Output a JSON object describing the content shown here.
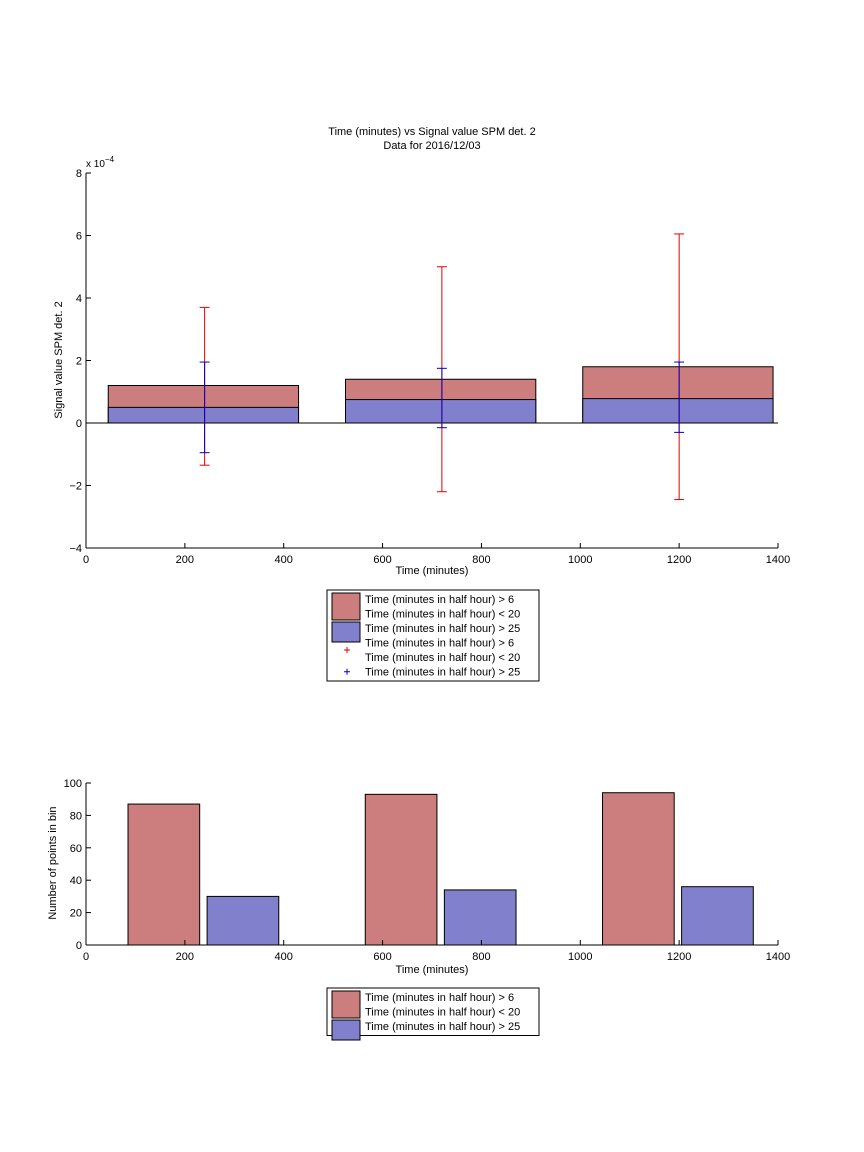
{
  "colors": {
    "red_fill": "#cc7e7e",
    "blue_fill": "#8080cc",
    "red_err": "#e00000",
    "blue_err": "#0000cc",
    "edge": "#000000"
  },
  "chart_data": [
    {
      "type": "bar",
      "title": "Time (minutes) vs Signal value SPM det. 2",
      "subtitle": "Data for 2016/12/03",
      "xlabel": "Time (minutes)",
      "ylabel": "Signal value SPM det. 2",
      "y_exponent_label": "x 10",
      "y_exponent_power": "−4",
      "xlim": [
        0,
        1400
      ],
      "ylim": [
        -4,
        8
      ],
      "x_ticks": [
        0,
        200,
        400,
        600,
        800,
        1000,
        1200,
        1400
      ],
      "y_ticks": [
        -4,
        -2,
        0,
        2,
        4,
        6,
        8
      ],
      "y_tick_labels": [
        "−4",
        "−2",
        "0",
        "2",
        "4",
        "6",
        "8"
      ],
      "bar_mode": "overlay",
      "bins": [
        {
          "x_start": 45,
          "x_end": 430,
          "center": 240
        },
        {
          "x_start": 525,
          "x_end": 910,
          "center": 720
        },
        {
          "x_start": 1005,
          "x_end": 1390,
          "center": 1200
        }
      ],
      "series": [
        {
          "name": "Time (minutes in half hour) > 6\nTime (minutes in half hour) < 20",
          "color": "red_fill",
          "values": [
            1.2,
            1.4,
            1.8
          ]
        },
        {
          "name": "Time (minutes in half hour) > 25",
          "color": "blue_fill",
          "values": [
            0.5,
            0.75,
            0.78
          ]
        }
      ],
      "error_bars": [
        {
          "name": "Time (minutes in half hour) > 6\nTime (minutes in half hour) < 20",
          "color": "red_err",
          "x": [
            240,
            720,
            1200
          ],
          "low": [
            -1.35,
            -2.2,
            -2.45
          ],
          "high": [
            3.7,
            5.0,
            6.05
          ]
        },
        {
          "name": "Time (minutes in half hour) > 25",
          "color": "blue_err",
          "x": [
            240,
            720,
            1200
          ],
          "low": [
            -0.95,
            -0.15,
            -0.3
          ],
          "high": [
            1.95,
            1.75,
            1.95
          ]
        }
      ],
      "legend": {
        "placement": "below",
        "entries": [
          {
            "kind": "patch",
            "color": "red_fill",
            "lines": [
              "Time (minutes in half hour) > 6",
              "Time (minutes in half hour) < 20"
            ]
          },
          {
            "kind": "patch",
            "color": "blue_fill",
            "lines": [
              "Time (minutes in half hour) > 25"
            ]
          },
          {
            "kind": "marker",
            "color": "red_err",
            "lines": [
              "Time (minutes in half hour) > 6",
              "Time (minutes in half hour) < 20"
            ]
          },
          {
            "kind": "marker",
            "color": "blue_err",
            "lines": [
              "Time (minutes in half hour) > 25"
            ]
          }
        ]
      },
      "grid": false
    },
    {
      "type": "bar",
      "title": "",
      "xlabel": "Time (minutes)",
      "ylabel": "Number of points in bin",
      "xlim": [
        0,
        1400
      ],
      "ylim": [
        0,
        100
      ],
      "x_ticks": [
        0,
        200,
        400,
        600,
        800,
        1000,
        1200,
        1400
      ],
      "y_ticks": [
        0,
        20,
        40,
        60,
        80,
        100
      ],
      "y_tick_labels": [
        "0",
        "20",
        "40",
        "60",
        "80",
        "100"
      ],
      "bar_mode": "grouped",
      "bars": [
        {
          "series": 0,
          "x_start": 85,
          "x_end": 230,
          "value": 87
        },
        {
          "series": 1,
          "x_start": 245,
          "x_end": 390,
          "value": 30
        },
        {
          "series": 0,
          "x_start": 565,
          "x_end": 710,
          "value": 93
        },
        {
          "series": 1,
          "x_start": 725,
          "x_end": 870,
          "value": 34
        },
        {
          "series": 0,
          "x_start": 1045,
          "x_end": 1190,
          "value": 94
        },
        {
          "series": 1,
          "x_start": 1205,
          "x_end": 1350,
          "value": 36
        }
      ],
      "series": [
        {
          "name": "Time (minutes in half hour) > 6\nTime (minutes in half hour) < 20",
          "color": "red_fill",
          "values": [
            87,
            93,
            94
          ]
        },
        {
          "name": "Time (minutes in half hour) > 25",
          "color": "blue_fill",
          "values": [
            30,
            34,
            36
          ]
        }
      ],
      "legend": {
        "placement": "below",
        "entries": [
          {
            "kind": "patch",
            "color": "red_fill",
            "lines": [
              "Time (minutes in half hour) > 6",
              "Time (minutes in half hour) < 20"
            ]
          },
          {
            "kind": "patch",
            "color": "blue_fill",
            "lines": [
              "Time (minutes in half hour) > 25"
            ]
          }
        ]
      },
      "grid": false
    }
  ]
}
